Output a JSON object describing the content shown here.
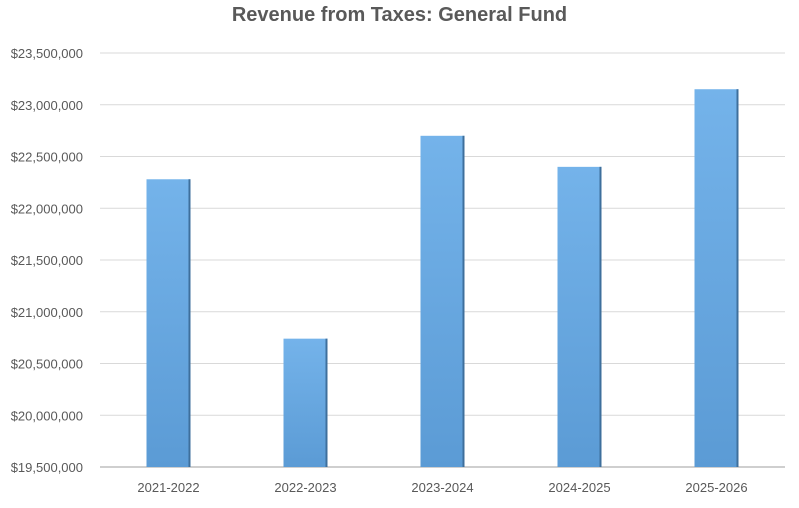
{
  "chart_data": {
    "type": "bar",
    "title": "Revenue from Taxes: General Fund",
    "categories": [
      "2021-2022",
      "2022-2023",
      "2023-2024",
      "2024-2025",
      "2025-2026"
    ],
    "values": [
      22280000,
      20740000,
      22700000,
      22400000,
      23150000
    ],
    "ylim": [
      19500000,
      23500000
    ],
    "yticks": [
      19500000,
      20000000,
      20500000,
      21000000,
      21500000,
      22000000,
      22500000,
      23000000,
      23500000
    ],
    "ytick_labels": [
      "$19,500,000",
      "$20,000,000",
      "$20,500,000",
      "$21,000,000",
      "$21,500,000",
      "$22,000,000",
      "$22,500,000",
      "$23,000,000",
      "$23,500,000"
    ],
    "grid": true,
    "bar_color": "#5b9bd5",
    "bar_color_light": "#74b3ea"
  }
}
